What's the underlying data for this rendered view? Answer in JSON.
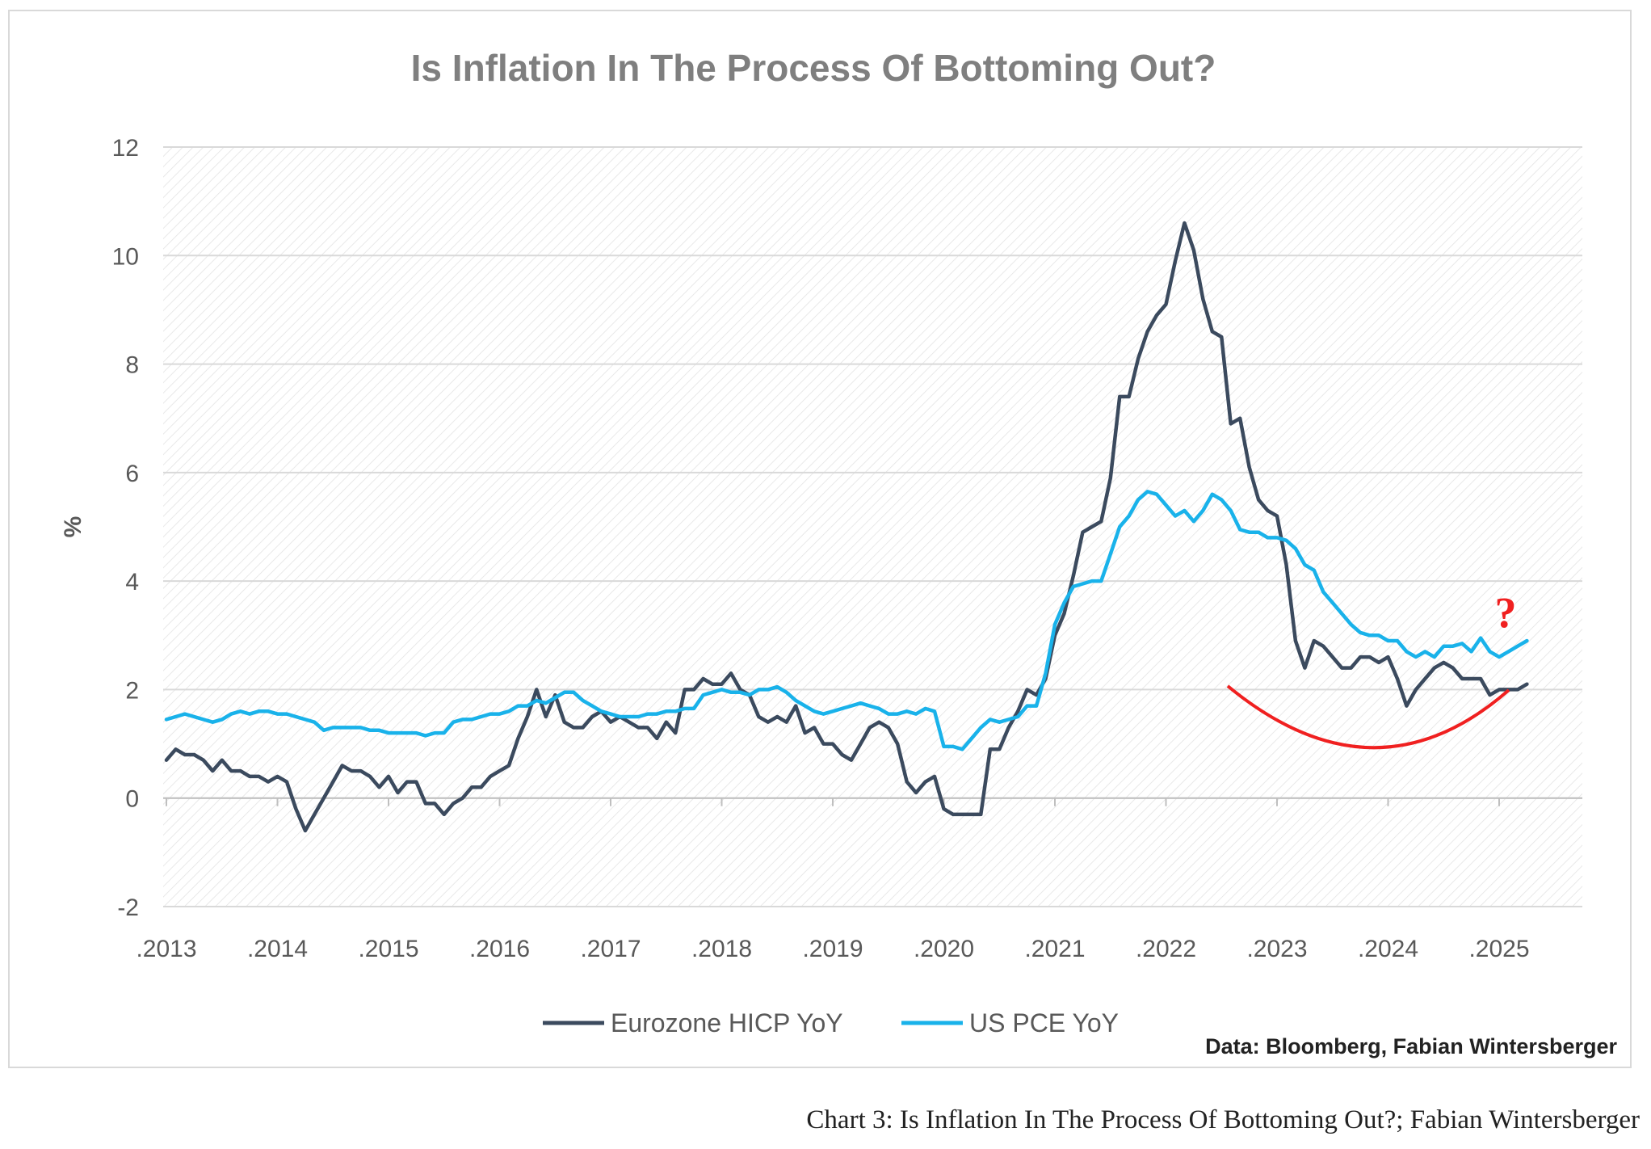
{
  "caption": "Chart 3: Is Inflation In The Process Of Bottoming Out?; Fabian Wintersberger",
  "chart_data": {
    "type": "line",
    "title": "Is Inflation In The Process Of Bottoming Out?",
    "ylabel": "%",
    "xlabel": "",
    "ylim": [
      -2,
      12
    ],
    "yticks": [
      "12",
      "10",
      "8",
      "6",
      "4",
      "2",
      "0",
      "-2"
    ],
    "xticks": [
      ".2013",
      ".2014",
      ".2015",
      ".2016",
      ".2017",
      ".2018",
      ".2019",
      ".2020",
      ".2021",
      ".2022",
      ".2023",
      ".2024",
      ".2025"
    ],
    "grid": true,
    "legend_position": "bottom",
    "source": "Data: Bloomberg, Fabian Wintersberger",
    "annotation": "?",
    "colors": {
      "eurozone": "#3b4a5e",
      "us": "#19b2ea",
      "annotation": "#f02020",
      "grid": "#d9d9d9",
      "text": "#595959"
    },
    "x_start": "2013-01",
    "series": [
      {
        "name": "Eurozone HICP YoY",
        "color": "#3b4a5e",
        "values": [
          0.7,
          0.9,
          0.8,
          0.8,
          0.7,
          0.5,
          0.7,
          0.5,
          0.5,
          0.4,
          0.4,
          0.3,
          0.4,
          0.3,
          -0.2,
          -0.6,
          -0.3,
          0.0,
          0.3,
          0.6,
          0.5,
          0.5,
          0.4,
          0.2,
          0.4,
          0.1,
          0.3,
          0.3,
          -0.1,
          -0.1,
          -0.3,
          -0.1,
          0.0,
          0.2,
          0.2,
          0.4,
          0.5,
          0.6,
          1.1,
          1.5,
          2.0,
          1.5,
          1.9,
          1.4,
          1.3,
          1.3,
          1.5,
          1.6,
          1.4,
          1.5,
          1.4,
          1.3,
          1.3,
          1.1,
          1.4,
          1.2,
          2.0,
          2.0,
          2.2,
          2.1,
          2.1,
          2.3,
          2.0,
          1.9,
          1.5,
          1.4,
          1.5,
          1.4,
          1.7,
          1.2,
          1.3,
          1.0,
          1.0,
          0.8,
          0.7,
          1.0,
          1.3,
          1.4,
          1.3,
          1.0,
          0.3,
          0.1,
          0.3,
          0.4,
          -0.2,
          -0.3,
          -0.3,
          -0.3,
          -0.3,
          0.9,
          0.9,
          1.3,
          1.6,
          2.0,
          1.9,
          2.2,
          3.0,
          3.4,
          4.1,
          4.9,
          5.0,
          5.1,
          5.9,
          7.4,
          7.4,
          8.1,
          8.6,
          8.9,
          9.1,
          9.9,
          10.6,
          10.1,
          9.2,
          8.6,
          8.5,
          6.9,
          7.0,
          6.1,
          5.5,
          5.3,
          5.2,
          4.3,
          2.9,
          2.4,
          2.9,
          2.8,
          2.6,
          2.4,
          2.4,
          2.6,
          2.6,
          2.5,
          2.6,
          2.2,
          1.7,
          2.0,
          2.2,
          2.4,
          2.5,
          2.4,
          2.2,
          2.2,
          2.2,
          1.9,
          2.0,
          2.0,
          2.0,
          2.1
        ]
      },
      {
        "name": "US PCE YoY",
        "color": "#19b2ea",
        "values": [
          1.45,
          1.5,
          1.55,
          1.5,
          1.45,
          1.4,
          1.45,
          1.55,
          1.6,
          1.55,
          1.6,
          1.6,
          1.55,
          1.55,
          1.5,
          1.45,
          1.4,
          1.25,
          1.3,
          1.3,
          1.3,
          1.3,
          1.25,
          1.25,
          1.2,
          1.2,
          1.2,
          1.2,
          1.15,
          1.2,
          1.2,
          1.4,
          1.45,
          1.45,
          1.5,
          1.55,
          1.55,
          1.6,
          1.7,
          1.7,
          1.8,
          1.75,
          1.85,
          1.95,
          1.95,
          1.8,
          1.7,
          1.6,
          1.55,
          1.5,
          1.5,
          1.5,
          1.55,
          1.55,
          1.6,
          1.6,
          1.65,
          1.65,
          1.9,
          1.95,
          2.0,
          1.95,
          1.95,
          1.9,
          2.0,
          2.0,
          2.05,
          1.95,
          1.8,
          1.7,
          1.6,
          1.55,
          1.6,
          1.65,
          1.7,
          1.75,
          1.7,
          1.65,
          1.55,
          1.55,
          1.6,
          1.55,
          1.65,
          1.6,
          0.95,
          0.95,
          0.9,
          1.1,
          1.3,
          1.45,
          1.4,
          1.45,
          1.5,
          1.7,
          1.7,
          2.3,
          3.2,
          3.6,
          3.9,
          3.95,
          4.0,
          4.0,
          4.5,
          5.0,
          5.2,
          5.5,
          5.65,
          5.6,
          5.4,
          5.2,
          5.3,
          5.1,
          5.3,
          5.6,
          5.5,
          5.3,
          4.95,
          4.9,
          4.9,
          4.8,
          4.8,
          4.75,
          4.6,
          4.3,
          4.2,
          3.8,
          3.6,
          3.4,
          3.2,
          3.05,
          3.0,
          3.0,
          2.9,
          2.9,
          2.7,
          2.6,
          2.7,
          2.6,
          2.8,
          2.8,
          2.85,
          2.7,
          2.95,
          2.7,
          2.6,
          2.7,
          2.8,
          2.9
        ]
      }
    ]
  }
}
